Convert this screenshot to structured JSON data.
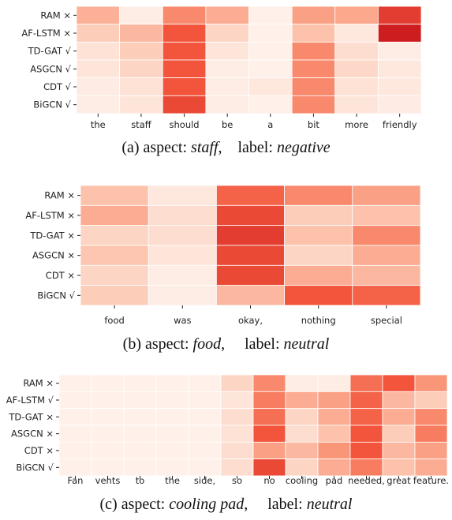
{
  "chart_data": [
    {
      "type": "heatmap",
      "rows": [
        "RAM ×",
        "AF-LSTM ×",
        "TD-GAT √",
        "ASGCN √",
        "CDT √",
        "BiGCN √"
      ],
      "columns": [
        "the",
        "staff",
        "should",
        "be",
        "a",
        "bit",
        "more",
        "friendly"
      ],
      "values": [
        [
          0.38,
          0.05,
          0.55,
          0.4,
          0.03,
          0.45,
          0.42,
          0.85
        ],
        [
          0.25,
          0.35,
          0.75,
          0.2,
          0.03,
          0.3,
          0.08,
          0.98
        ],
        [
          0.12,
          0.25,
          0.75,
          0.1,
          0.03,
          0.55,
          0.15,
          0.05
        ],
        [
          0.1,
          0.2,
          0.75,
          0.05,
          0.03,
          0.55,
          0.18,
          0.08
        ],
        [
          0.06,
          0.12,
          0.75,
          0.05,
          0.08,
          0.55,
          0.12,
          0.08
        ],
        [
          0.05,
          0.1,
          0.8,
          0.05,
          0.03,
          0.55,
          0.1,
          0.06
        ]
      ],
      "caption": {
        "prefix": "(a) aspect: ",
        "aspect": "staff",
        "sep": ",    label: ",
        "label": "negative"
      }
    },
    {
      "type": "heatmap",
      "rows": [
        "RAM ×",
        "AF-LSTM ×",
        "TD-GAT ×",
        "ASGCN ×",
        "CDT ×",
        "BiGCN √"
      ],
      "columns": [
        "food",
        "was",
        "okay,",
        "nothing",
        "special"
      ],
      "values": [
        [
          0.3,
          0.08,
          0.7,
          0.55,
          0.45
        ],
        [
          0.4,
          0.15,
          0.8,
          0.25,
          0.3
        ],
        [
          0.2,
          0.15,
          0.85,
          0.3,
          0.55
        ],
        [
          0.28,
          0.1,
          0.8,
          0.2,
          0.4
        ],
        [
          0.2,
          0.05,
          0.8,
          0.4,
          0.35
        ],
        [
          0.25,
          0.05,
          0.35,
          0.75,
          0.7
        ]
      ],
      "caption": {
        "prefix": "(b) aspect: ",
        "aspect": "food",
        "sep": ",     label: ",
        "label": "neutral"
      }
    },
    {
      "type": "heatmap",
      "rows": [
        "RAM ×",
        "AF-LSTM √",
        "TD-GAT ×",
        "ASGCN ×",
        "CDT ×",
        "BiGCN √"
      ],
      "columns": [
        "Fan",
        "vents",
        "to",
        "the",
        "side,",
        "so",
        "no",
        "cooling",
        "pad",
        "needed,",
        "great",
        "feature."
      ],
      "values": [
        [
          0.03,
          0.03,
          0.03,
          0.03,
          0.03,
          0.2,
          0.55,
          0.05,
          0.05,
          0.65,
          0.75,
          0.5
        ],
        [
          0.03,
          0.03,
          0.03,
          0.03,
          0.03,
          0.1,
          0.6,
          0.4,
          0.45,
          0.7,
          0.35,
          0.25
        ],
        [
          0.03,
          0.03,
          0.03,
          0.03,
          0.03,
          0.15,
          0.65,
          0.2,
          0.4,
          0.7,
          0.4,
          0.55
        ],
        [
          0.03,
          0.03,
          0.03,
          0.03,
          0.03,
          0.12,
          0.75,
          0.15,
          0.3,
          0.75,
          0.25,
          0.6
        ],
        [
          0.03,
          0.03,
          0.03,
          0.03,
          0.03,
          0.15,
          0.45,
          0.35,
          0.5,
          0.75,
          0.35,
          0.45
        ],
        [
          0.03,
          0.03,
          0.03,
          0.03,
          0.03,
          0.15,
          0.8,
          0.2,
          0.4,
          0.6,
          0.3,
          0.4
        ]
      ],
      "caption": {
        "prefix": "(c) aspect: ",
        "aspect": "cooling pad",
        "sep": ",     label: ",
        "label": "neutral"
      }
    }
  ]
}
